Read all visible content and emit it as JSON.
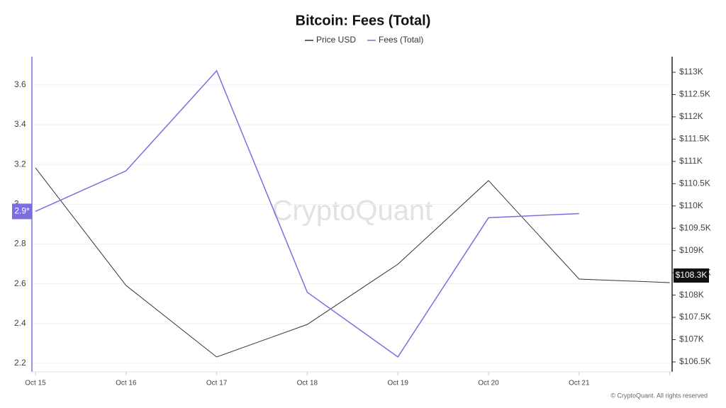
{
  "chart_data": {
    "type": "line",
    "title": "Bitcoin: Fees (Total)",
    "watermark": "CryptoQuant",
    "footer": "© CryptoQuant. All rights reserved",
    "categories": [
      "Oct 15",
      "Oct 16",
      "Oct 17",
      "Oct 18",
      "Oct 19",
      "Oct 20",
      "Oct 21",
      null
    ],
    "series": [
      {
        "name": "Price USD",
        "color": "#333333",
        "axis": "y2",
        "values": [
          110855,
          108216,
          106611,
          107342,
          108693,
          110569,
          108360,
          108280
        ],
        "badge": "$108.3K"
      },
      {
        "name": "Fees (Total)",
        "color": "#7b6fe0",
        "values": [
          2.964,
          3.168,
          3.671,
          2.557,
          2.232,
          2.932,
          2.953,
          null
        ],
        "badge": "2.9*"
      }
    ],
    "ylim": [
      2.157,
      3.742
    ],
    "yticks": [
      2.2,
      2.4,
      2.6,
      2.8,
      3,
      3.2,
      3.4,
      3.6
    ],
    "y2lim": [
      106277,
      113350
    ],
    "y2ticks": [
      {
        "value": 106500,
        "label": "$106.5K"
      },
      {
        "value": 107000,
        "label": "$107K"
      },
      {
        "value": 107500,
        "label": "$107.5K"
      },
      {
        "value": 108000,
        "label": "$108K"
      },
      {
        "value": 108500,
        "label": "$108.5K"
      },
      {
        "value": 109000,
        "label": "$109K"
      },
      {
        "value": 109500,
        "label": "$109.5K"
      },
      {
        "value": 110000,
        "label": "$110K"
      },
      {
        "value": 110500,
        "label": "$110.5K"
      },
      {
        "value": 111000,
        "label": "$111K"
      },
      {
        "value": 111500,
        "label": "$111.5K"
      },
      {
        "value": 112000,
        "label": "$112K"
      },
      {
        "value": 112500,
        "label": "$112.5K"
      },
      {
        "value": 113000,
        "label": "$113K"
      }
    ],
    "grid": true
  }
}
